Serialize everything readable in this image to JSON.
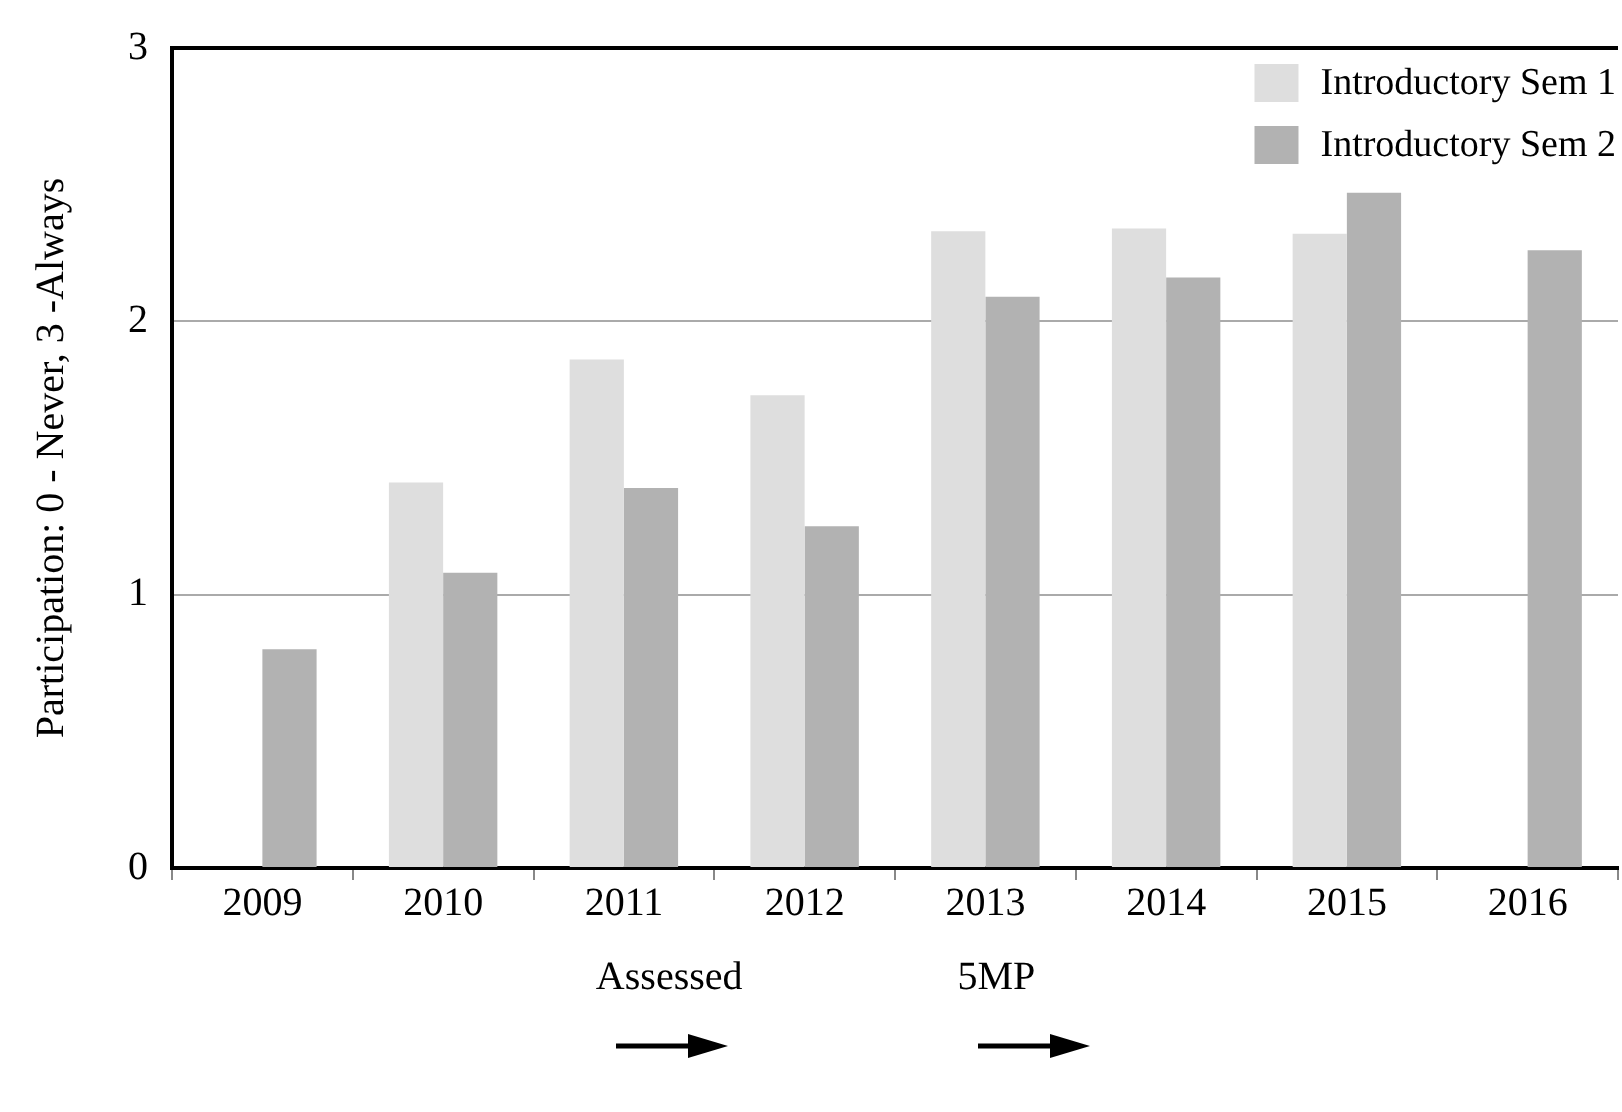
{
  "chart_data": {
    "type": "bar",
    "ylabel": "Participation: 0 - Never, 3 -Always",
    "categories": [
      "2009",
      "2010",
      "2011",
      "2012",
      "2013",
      "2014",
      "2015",
      "2016"
    ],
    "series": [
      {
        "name": "Introductory Sem 1",
        "color": "#dedede",
        "values": [
          null,
          1.41,
          1.86,
          1.73,
          2.33,
          2.34,
          2.32,
          null
        ]
      },
      {
        "name": "Introductory Sem 2",
        "color": "#b2b2b2",
        "values": [
          0.8,
          1.08,
          1.39,
          1.25,
          2.09,
          2.16,
          2.47,
          2.26
        ]
      }
    ],
    "ylim": [
      0,
      3
    ],
    "yticks": [
      0,
      1,
      2,
      3
    ],
    "grid": "y",
    "legend": "top right",
    "annotations": [
      "Assessed",
      "5MP"
    ]
  }
}
